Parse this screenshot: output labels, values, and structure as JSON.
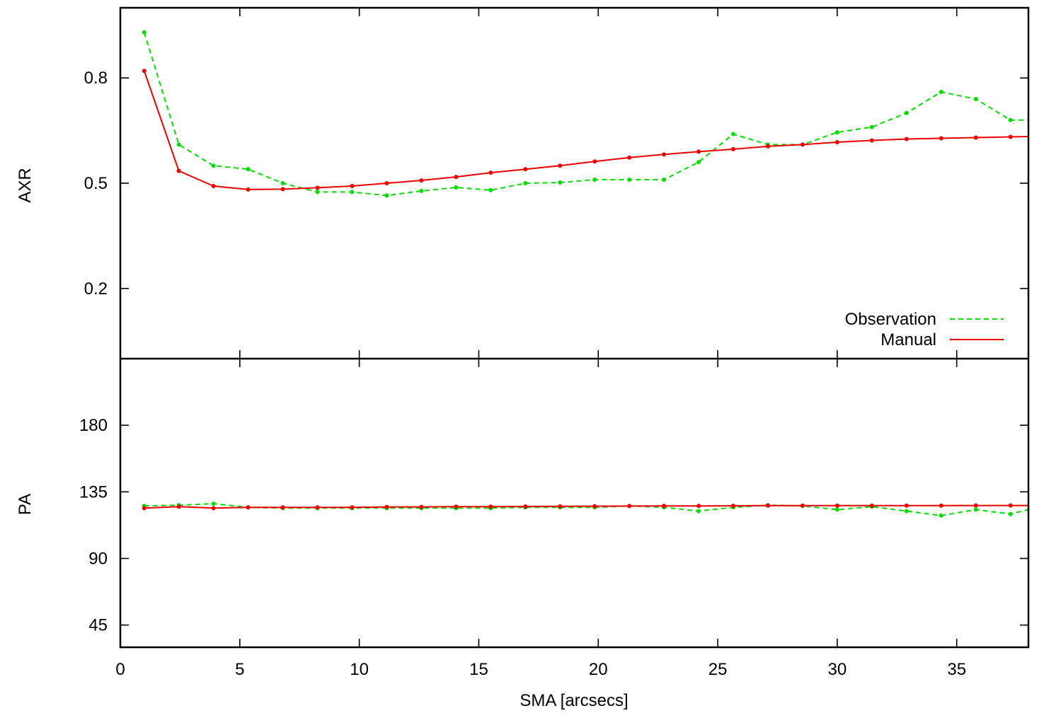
{
  "chart_data": [
    {
      "type": "line",
      "panel": "top",
      "ylabel": "AXR",
      "ylim": [
        0.0,
        1.0
      ],
      "yticks": [
        0.2,
        0.5,
        0.8
      ],
      "ytick_labels": [
        "0.2",
        "0.5",
        "0.8"
      ],
      "legend": {
        "placement": "bottom-right",
        "entries": [
          "Observation",
          "Manual"
        ]
      },
      "grid": false,
      "series": [
        {
          "name": "Observation",
          "color": "#00dd00",
          "dash": "dashed",
          "x": [
            1.0,
            2.45,
            3.9,
            5.35,
            6.8,
            8.25,
            9.7,
            11.15,
            12.6,
            14.05,
            15.5,
            16.95,
            18.4,
            19.85,
            21.3,
            22.75,
            24.2,
            25.65,
            27.1,
            28.55,
            30.0,
            31.45,
            32.9,
            34.35,
            35.8,
            37.25,
            38.0
          ],
          "y": [
            0.93,
            0.61,
            0.55,
            0.54,
            0.5,
            0.475,
            0.475,
            0.465,
            0.478,
            0.488,
            0.48,
            0.5,
            0.502,
            0.51,
            0.51,
            0.51,
            0.56,
            0.64,
            0.61,
            0.61,
            0.645,
            0.66,
            0.7,
            0.76,
            0.74,
            0.68,
            0.68
          ]
        },
        {
          "name": "Manual",
          "color": "#ee0000",
          "dash": "solid",
          "x": [
            1.0,
            2.45,
            3.9,
            5.35,
            6.8,
            8.25,
            9.7,
            11.15,
            12.6,
            14.05,
            15.5,
            16.95,
            18.4,
            19.85,
            21.3,
            22.75,
            24.2,
            25.65,
            27.1,
            28.55,
            30.0,
            31.45,
            32.9,
            34.35,
            35.8,
            37.25,
            38.0
          ],
          "y": [
            0.82,
            0.535,
            0.492,
            0.482,
            0.483,
            0.487,
            0.492,
            0.5,
            0.508,
            0.518,
            0.53,
            0.54,
            0.55,
            0.562,
            0.573,
            0.582,
            0.59,
            0.597,
            0.605,
            0.61,
            0.617,
            0.622,
            0.626,
            0.628,
            0.63,
            0.632,
            0.633
          ]
        }
      ]
    },
    {
      "type": "line",
      "panel": "bottom",
      "ylabel": "PA",
      "xlabel": "SMA [arcsecs]",
      "xlim": [
        0,
        38
      ],
      "ylim": [
        30,
        225
      ],
      "yticks": [
        45,
        90,
        135,
        180
      ],
      "ytick_labels": [
        "45",
        "90",
        "135",
        "180"
      ],
      "xticks": [
        0,
        5,
        10,
        15,
        20,
        25,
        30,
        35
      ],
      "xtick_labels": [
        "0",
        "5",
        "10",
        "15",
        "20",
        "25",
        "30",
        "35"
      ],
      "grid": false,
      "series": [
        {
          "name": "Observation",
          "color": "#00dd00",
          "dash": "dashed",
          "x": [
            1.0,
            2.45,
            3.9,
            5.35,
            6.8,
            8.25,
            9.7,
            11.15,
            12.6,
            14.05,
            15.5,
            16.95,
            18.4,
            19.85,
            21.3,
            22.75,
            24.2,
            25.65,
            27.1,
            28.55,
            30.0,
            31.45,
            32.9,
            34.35,
            35.8,
            37.25,
            38.0
          ],
          "y": [
            125.5,
            126,
            127,
            124.5,
            124,
            124,
            124,
            124,
            124,
            124,
            124,
            124.5,
            124.5,
            124.5,
            125.5,
            124.5,
            122,
            124.5,
            126,
            125.5,
            123,
            125,
            122,
            119,
            123,
            120,
            123
          ]
        },
        {
          "name": "Manual",
          "color": "#ee0000",
          "dash": "solid",
          "x": [
            1.0,
            2.45,
            3.9,
            5.35,
            6.8,
            8.25,
            9.7,
            11.15,
            12.6,
            14.05,
            15.5,
            16.95,
            18.4,
            19.85,
            21.3,
            22.75,
            24.2,
            25.65,
            27.1,
            28.55,
            30.0,
            31.45,
            32.9,
            34.35,
            35.8,
            37.25,
            38.0
          ],
          "y": [
            124,
            125,
            124,
            124.5,
            124.5,
            124.5,
            124.5,
            124.8,
            124.8,
            125,
            125,
            125.1,
            125.2,
            125.3,
            125.4,
            125.5,
            125.5,
            125.6,
            125.7,
            125.7,
            125.7,
            125.7,
            125.7,
            125.7,
            125.8,
            125.8,
            125.8
          ]
        }
      ]
    }
  ]
}
